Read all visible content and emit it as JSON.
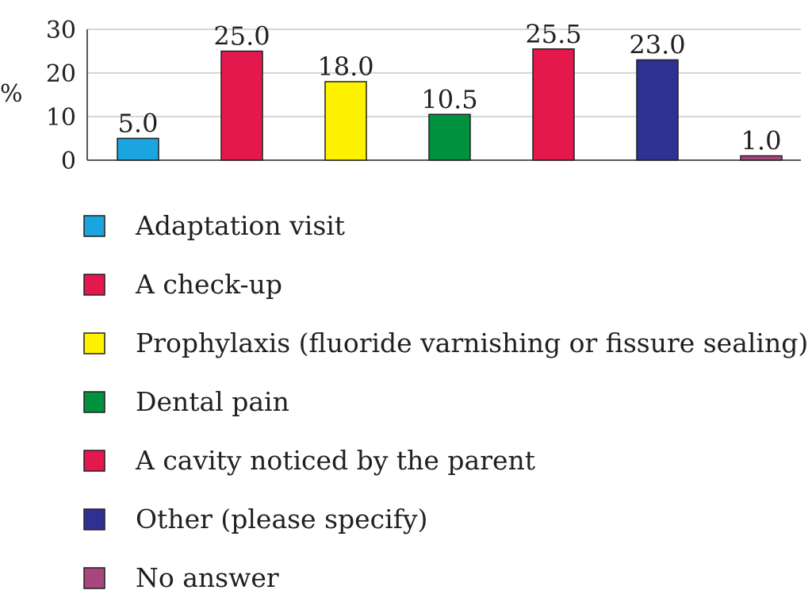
{
  "chart_data": {
    "type": "bar",
    "title": "",
    "xlabel": "",
    "ylabel": "%",
    "ylim": [
      0,
      30
    ],
    "yticks": [
      0,
      10,
      20,
      30
    ],
    "grid": true,
    "legend_position": "bottom",
    "categories": [
      "Adaptation visit",
      "A check-up",
      "Prophylaxis (fluoride varnishing or fissure sealing)",
      "Dental pain",
      "A cavity noticed by the parent",
      "Other (please specify)",
      "No answer"
    ],
    "values": [
      5.0,
      25.0,
      18.0,
      10.5,
      25.5,
      23.0,
      1.0
    ],
    "value_labels": [
      "5.0",
      "25.0",
      "18.0",
      "10.5",
      "25.5",
      "23.0",
      "1.0"
    ],
    "colors": [
      "#1aa5e0",
      "#e5184d",
      "#fff200",
      "#00923f",
      "#e5184d",
      "#2e3192",
      "#a8477e"
    ]
  }
}
